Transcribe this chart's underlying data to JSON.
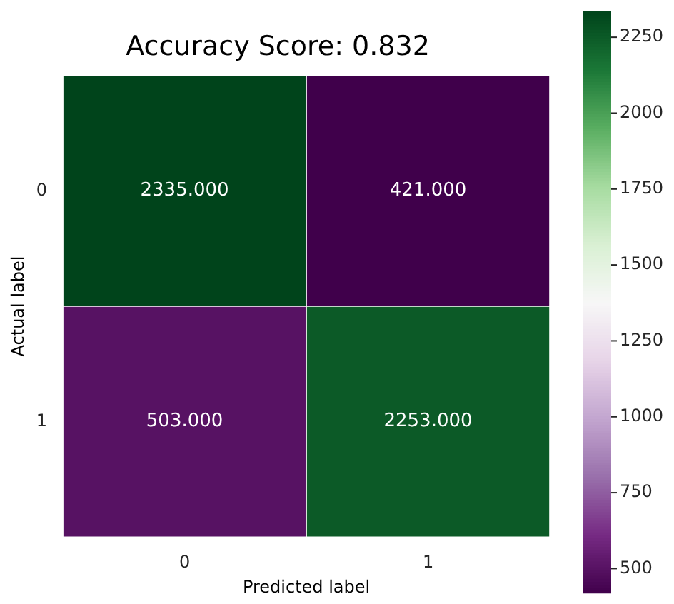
{
  "chart_data": {
    "type": "heatmap",
    "title": "Accuracy Score: 0.832",
    "xlabel": "Predicted label",
    "ylabel": "Actual label",
    "categories": [
      "0",
      "1"
    ],
    "y_categories": [
      "0",
      "1"
    ],
    "cells": [
      [
        2335,
        421
      ],
      [
        503,
        2253
      ]
    ],
    "cell_labels": [
      [
        "2335.000",
        "421.000"
      ],
      [
        "503.000",
        "2253.000"
      ]
    ],
    "clim": [
      421,
      2335
    ],
    "cticks": [
      500,
      750,
      1000,
      1250,
      1500,
      1750,
      2000,
      2250
    ]
  }
}
